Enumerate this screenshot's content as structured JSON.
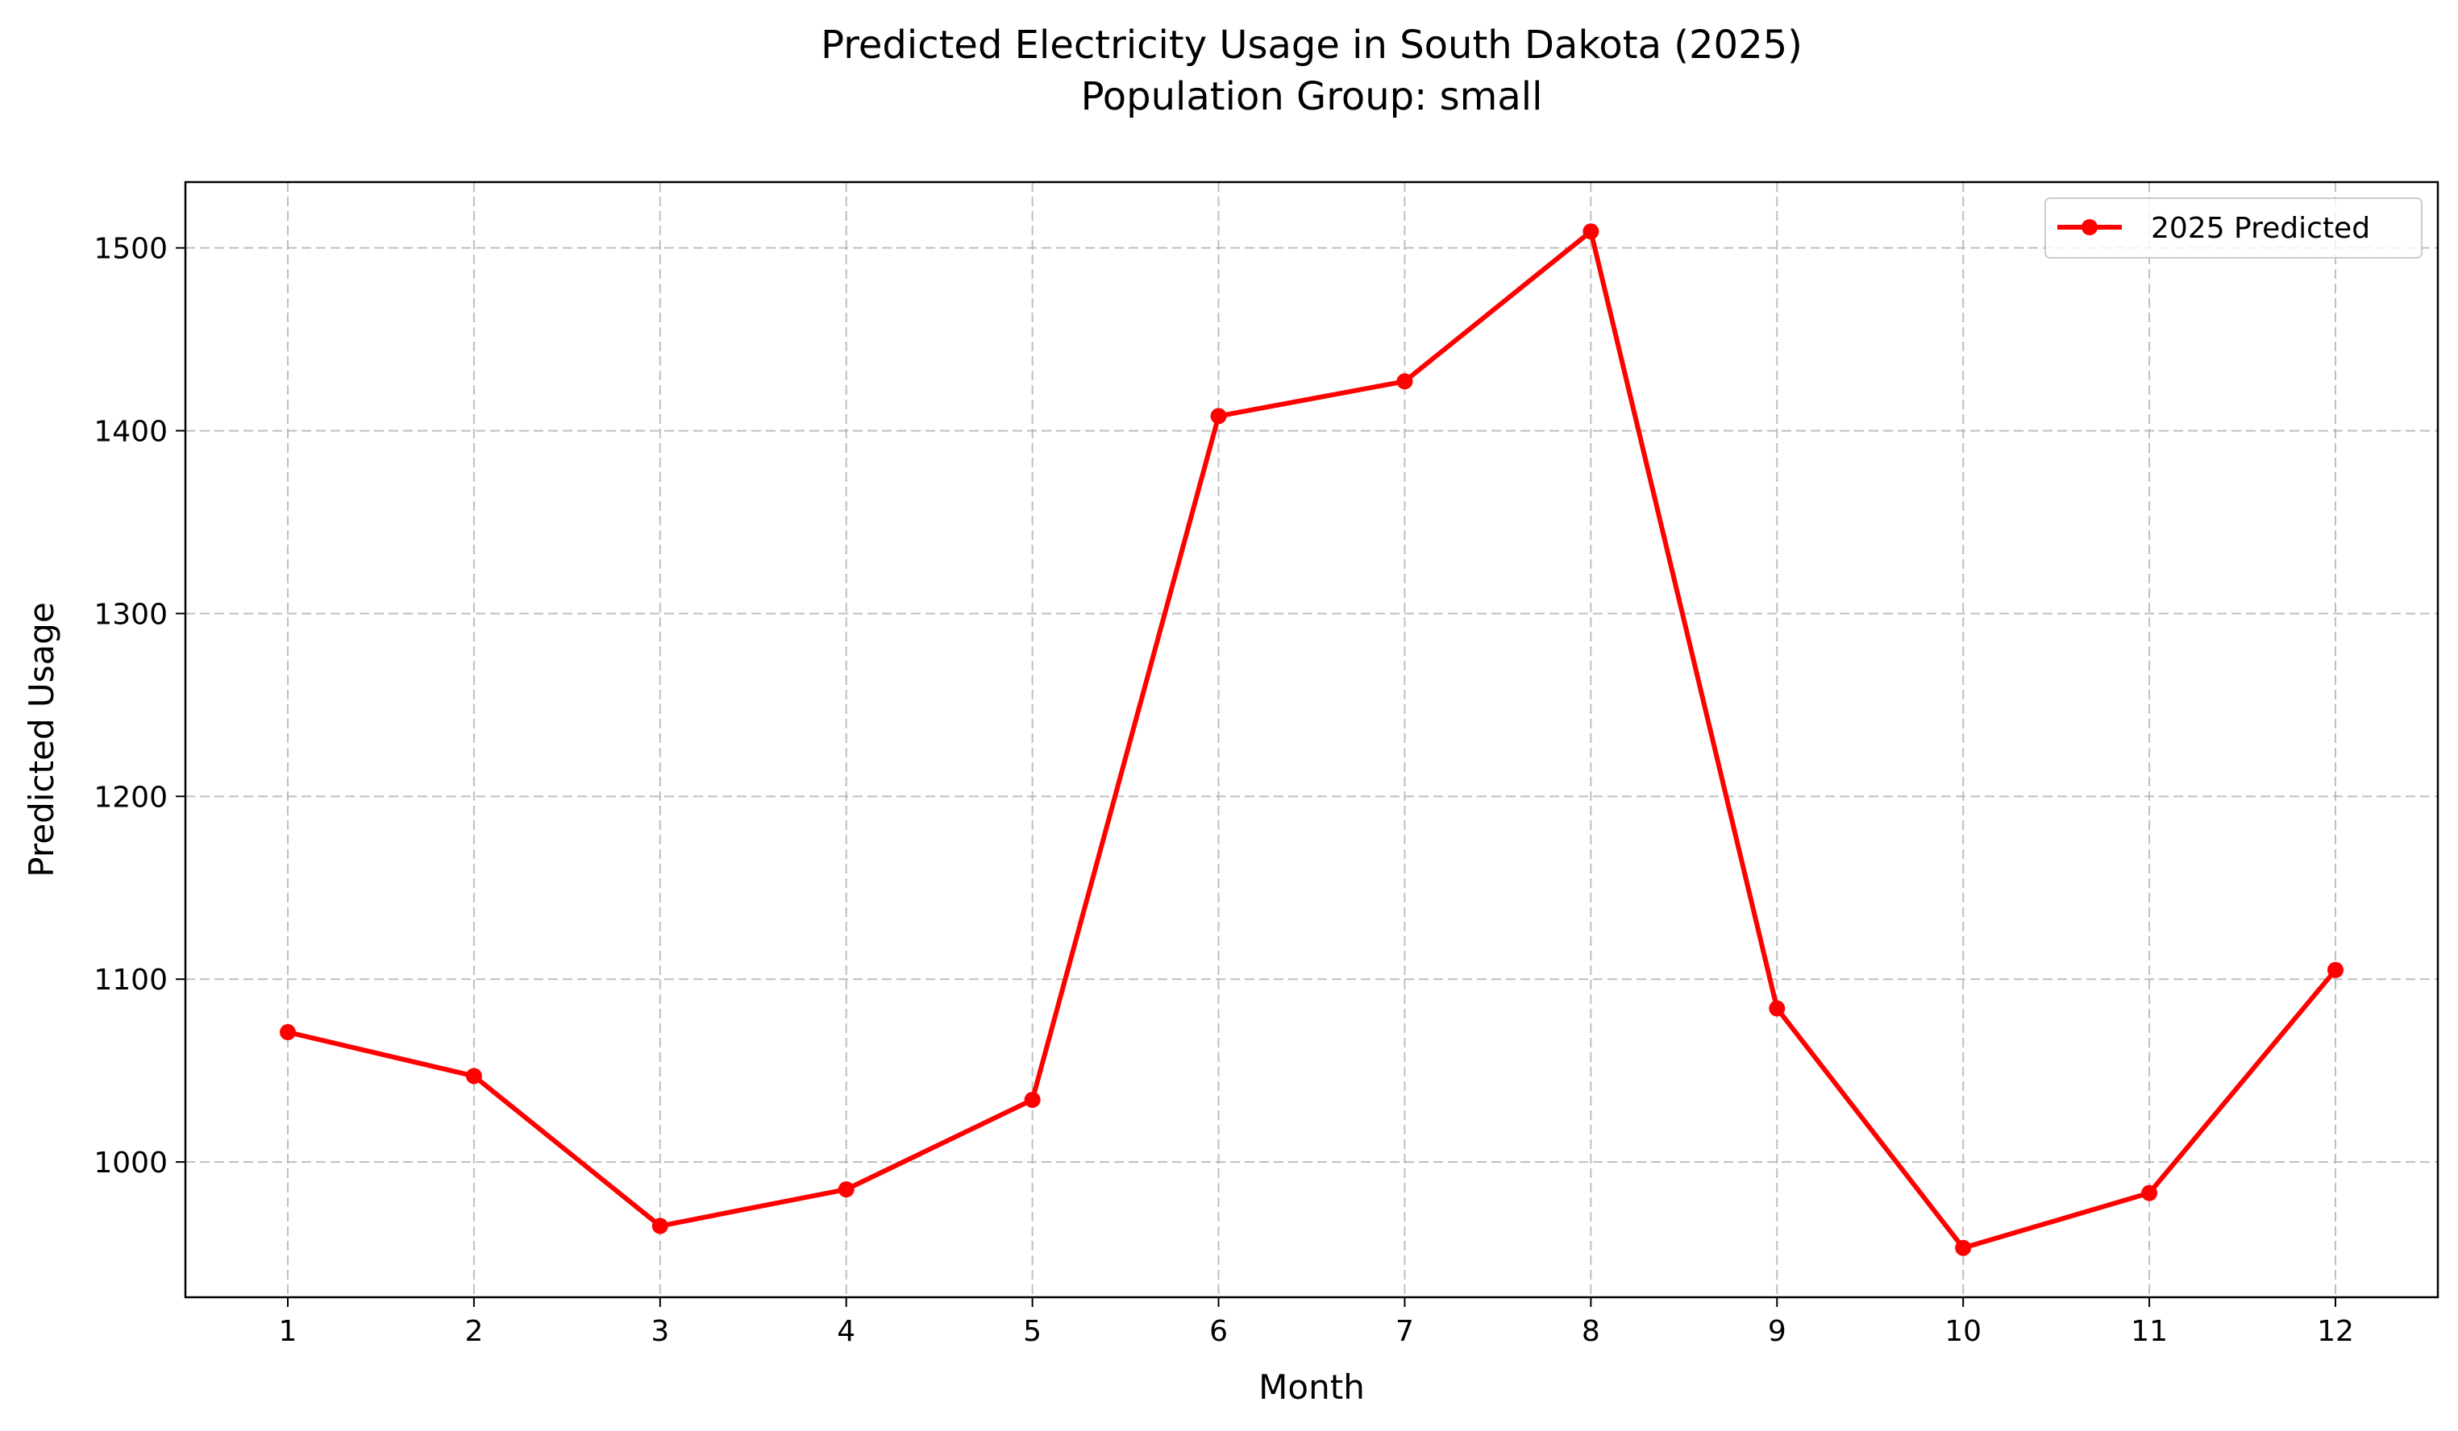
{
  "chart_data": {
    "type": "line",
    "title": "Predicted Electricity Usage in South Dakota (2025)",
    "subtitle": "Population Group: small",
    "xlabel": "Month",
    "ylabel": "Predicted Usage",
    "x": [
      1,
      2,
      3,
      4,
      5,
      6,
      7,
      8,
      9,
      10,
      11,
      12
    ],
    "xlim": [
      0.45,
      12.55
    ],
    "ylim": [
      926,
      1536
    ],
    "yticks": [
      1000,
      1100,
      1200,
      1300,
      1400,
      1500
    ],
    "grid": true,
    "legend_position": "top-right",
    "series": [
      {
        "name": "2025 Predicted",
        "color": "#ff0000",
        "marker": "circle",
        "values": [
          1071,
          1047,
          965,
          985,
          1034,
          1408,
          1427,
          1509,
          1084,
          953,
          983,
          1105
        ]
      }
    ]
  }
}
